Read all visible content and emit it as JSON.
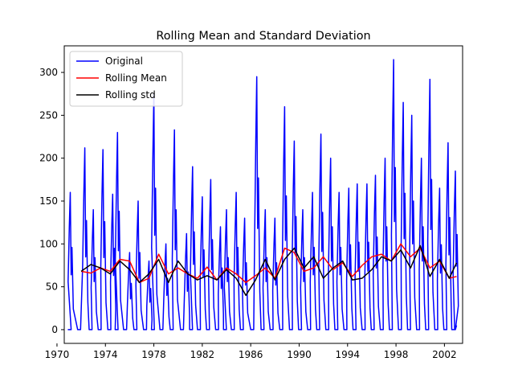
{
  "chart_data": {
    "type": "line",
    "title": "Rolling Mean and Standard Deviation",
    "xlabel": "",
    "ylabel": "",
    "xlim": [
      1970.6,
      2003.5
    ],
    "ylim": [
      -16,
      331
    ],
    "x_ticks": [
      "1970",
      "1974",
      "1978",
      "1982",
      "1986",
      "1990",
      "1994",
      "1998",
      "2002"
    ],
    "y_ticks": [
      "0",
      "50",
      "100",
      "150",
      "200",
      "250",
      "300"
    ],
    "grid": false,
    "legend_position": "top-left",
    "series": [
      {
        "name": "Original",
        "color": "#0000ff",
        "peaks": [
          [
            1971.1,
            160
          ],
          [
            1972.3,
            212
          ],
          [
            1973.0,
            140
          ],
          [
            1973.8,
            210
          ],
          [
            1974.6,
            158
          ],
          [
            1975.0,
            230
          ],
          [
            1976.0,
            90
          ],
          [
            1976.7,
            150
          ],
          [
            1977.6,
            80
          ],
          [
            1978.0,
            275
          ],
          [
            1979.0,
            100
          ],
          [
            1979.7,
            233
          ],
          [
            1980.7,
            112
          ],
          [
            1981.2,
            190
          ],
          [
            1982.0,
            155
          ],
          [
            1982.7,
            175
          ],
          [
            1983.5,
            120
          ],
          [
            1984.0,
            140
          ],
          [
            1984.8,
            160
          ],
          [
            1985.5,
            130
          ],
          [
            1986.5,
            295
          ],
          [
            1987.2,
            140
          ],
          [
            1988.0,
            130
          ],
          [
            1988.8,
            260
          ],
          [
            1989.6,
            220
          ],
          [
            1990.3,
            140
          ],
          [
            1991.1,
            160
          ],
          [
            1991.8,
            228
          ],
          [
            1992.6,
            200
          ],
          [
            1993.3,
            160
          ],
          [
            1994.1,
            165
          ],
          [
            1994.8,
            170
          ],
          [
            1995.6,
            170
          ],
          [
            1996.3,
            180
          ],
          [
            1997.1,
            200
          ],
          [
            1997.8,
            315
          ],
          [
            1998.6,
            265
          ],
          [
            1999.3,
            250
          ],
          [
            2000.1,
            200
          ],
          [
            2000.8,
            292
          ],
          [
            2001.6,
            165
          ],
          [
            2002.3,
            218
          ],
          [
            2002.9,
            185
          ]
        ],
        "start": [
          1971.0,
          0
        ],
        "end": [
          2003.0,
          5
        ]
      },
      {
        "name": "Rolling Mean",
        "color": "#ff0000",
        "x": [
          1972.0,
          1972.8,
          1973.6,
          1974.4,
          1975.2,
          1976.0,
          1976.8,
          1977.6,
          1978.4,
          1979.2,
          1980.0,
          1980.8,
          1981.6,
          1982.4,
          1983.2,
          1984.0,
          1984.8,
          1985.6,
          1986.4,
          1987.2,
          1988.0,
          1988.8,
          1989.6,
          1990.4,
          1991.2,
          1992.0,
          1992.8,
          1993.6,
          1994.4,
          1995.2,
          1996.0,
          1996.8,
          1997.6,
          1998.4,
          1999.2,
          2000.0,
          2000.8,
          2001.6,
          2002.4,
          2003.0
        ],
        "y": [
          68,
          66,
          72,
          68,
          82,
          80,
          55,
          60,
          88,
          65,
          72,
          65,
          60,
          73,
          58,
          72,
          65,
          55,
          63,
          72,
          60,
          95,
          90,
          68,
          72,
          85,
          70,
          78,
          62,
          75,
          85,
          88,
          80,
          100,
          85,
          95,
          72,
          80,
          60,
          62
        ]
      },
      {
        "name": "Rolling std",
        "color": "#000000",
        "x": [
          1972.0,
          1972.8,
          1973.6,
          1974.4,
          1975.2,
          1976.0,
          1976.8,
          1977.6,
          1978.4,
          1979.2,
          1980.0,
          1980.8,
          1981.6,
          1982.4,
          1983.2,
          1984.0,
          1984.8,
          1985.6,
          1986.4,
          1987.2,
          1988.0,
          1988.8,
          1989.6,
          1990.4,
          1991.2,
          1992.0,
          1992.8,
          1993.6,
          1994.4,
          1995.2,
          1996.0,
          1996.8,
          1997.6,
          1998.4,
          1999.2,
          2000.0,
          2000.8,
          2001.6,
          2002.4,
          2003.0
        ],
        "y": [
          68,
          76,
          72,
          65,
          80,
          70,
          55,
          65,
          82,
          55,
          80,
          65,
          58,
          63,
          58,
          70,
          60,
          40,
          58,
          82,
          58,
          82,
          95,
          72,
          85,
          60,
          72,
          80,
          58,
          60,
          70,
          85,
          80,
          93,
          72,
          98,
          62,
          82,
          60,
          78
        ]
      }
    ]
  }
}
